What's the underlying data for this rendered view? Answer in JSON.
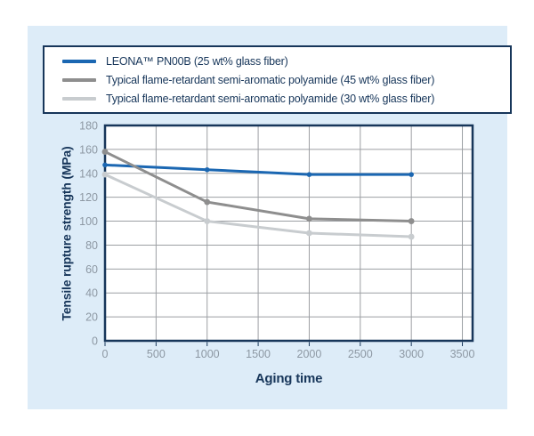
{
  "colors": {
    "canvas_bg": "#ffffff",
    "panel_bg": "#ddecf8",
    "navy": "#17365a",
    "plot_bg": "#ffffff",
    "gridline": "#9c9fa3",
    "tick_label": "#8d98a3"
  },
  "chart_data": {
    "type": "line",
    "x": [
      0,
      1000,
      2000,
      3000
    ],
    "series": [
      {
        "name": "LEONA™ PN00B (25 wt% glass fiber)",
        "color": "#1b67b2",
        "values": [
          147,
          143,
          139,
          139
        ]
      },
      {
        "name": "Typical flame-retardant semi-aromatic polyamide (45 wt% glass fiber)",
        "color": "#8e8e8e",
        "values": [
          158,
          116,
          102,
          100
        ]
      },
      {
        "name": "Typical flame-retardant semi-aromatic polyamide (30 wt% glass fiber)",
        "color": "#c8cccf",
        "values": [
          139,
          100,
          90,
          87
        ]
      }
    ],
    "xlabel": "Aging time",
    "ylabel": "Tensile rupture strength (MPa)",
    "xlim": [
      0,
      3600
    ],
    "ylim": [
      0,
      180
    ],
    "xticks": [
      0,
      500,
      1000,
      1500,
      2000,
      2500,
      3000,
      3500
    ],
    "yticks": [
      0,
      20,
      40,
      60,
      80,
      100,
      120,
      140,
      160,
      180
    ],
    "grid": true,
    "legend_position": "top"
  }
}
